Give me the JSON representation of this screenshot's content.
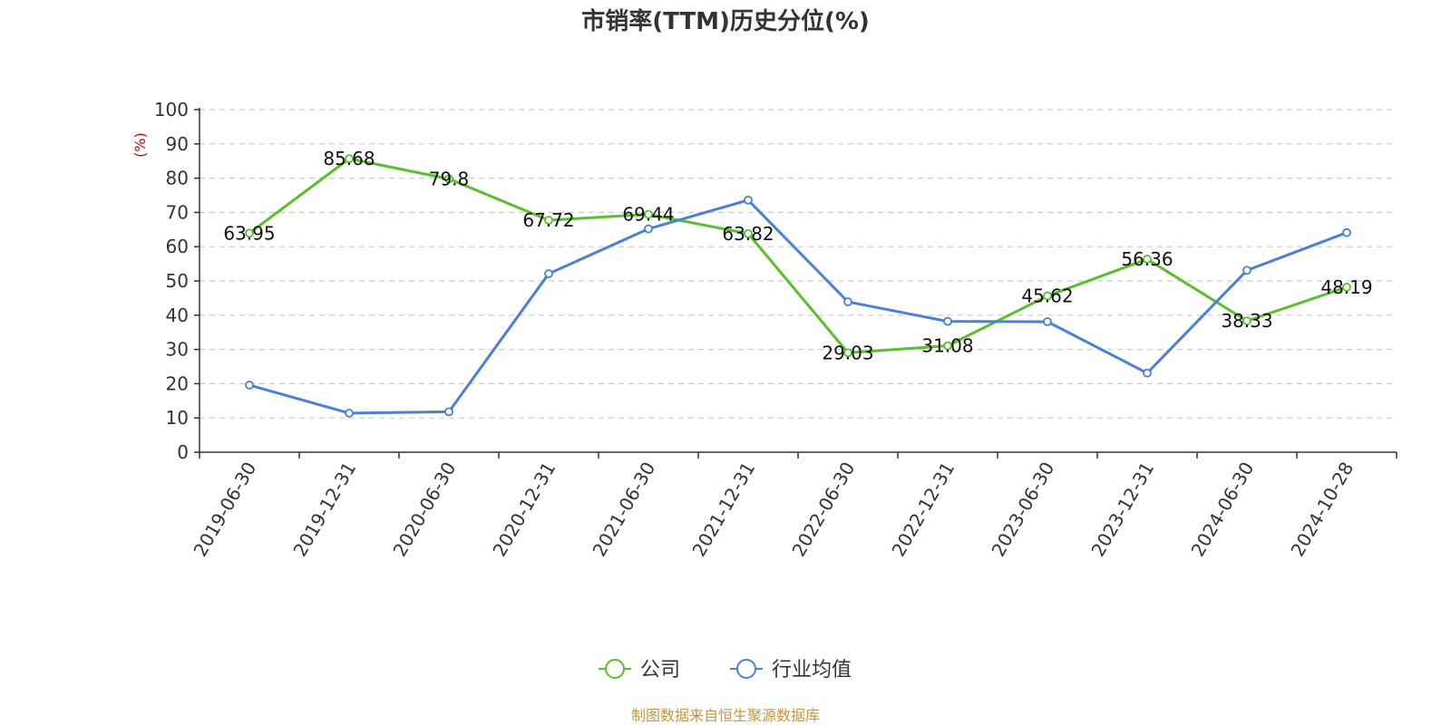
{
  "chart_data": {
    "type": "line",
    "title": "市销率(TTM)历史分位(%)",
    "ylabel": "(%)",
    "ylim": [
      0,
      100
    ],
    "yticks": [
      "0",
      "10",
      "20",
      "30",
      "40",
      "50",
      "60",
      "70",
      "80",
      "90",
      "100"
    ],
    "categories": [
      "2019-06-30",
      "2019-12-31",
      "2020-06-30",
      "2020-12-31",
      "2021-06-30",
      "2021-12-31",
      "2022-06-30",
      "2022-12-31",
      "2023-06-30",
      "2023-12-31",
      "2024-06-30",
      "2024-10-28"
    ],
    "grid": true,
    "legend_position": "bottom-center",
    "series": [
      {
        "name": "公司",
        "color": "#5ac02a",
        "values": [
          63.95,
          85.68,
          79.8,
          67.72,
          69.44,
          63.82,
          29.03,
          31.08,
          45.62,
          56.36,
          38.33,
          48.19
        ],
        "labels": [
          "63.95",
          "85.68",
          "79.8",
          "67.72",
          "69.44",
          "63.82",
          "29.03",
          "31.08",
          "45.62",
          "56.36",
          "38.33",
          "48.19"
        ]
      },
      {
        "name": "行业均值",
        "color": "#4a7fdb",
        "values": [
          19.6,
          11.4,
          11.8,
          52.1,
          65.2,
          73.6,
          43.9,
          38.2,
          38.1,
          23.1,
          53.1,
          64.1
        ]
      }
    ],
    "source": "制图数据来自恒生聚源数据库"
  }
}
